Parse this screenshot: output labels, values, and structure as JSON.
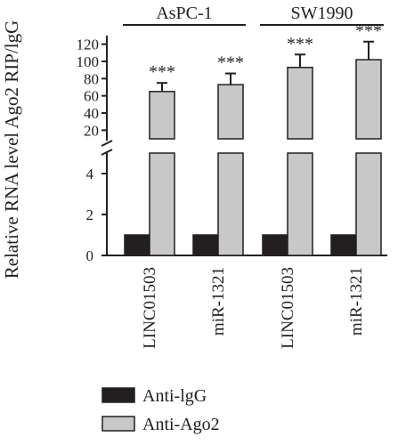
{
  "chart_data": {
    "type": "bar",
    "title": "",
    "xlabel": "",
    "ylabel": "Relative RNA level Ago2 RIP/lgG",
    "axis_break": true,
    "ylim_lower": [
      0,
      5
    ],
    "ylim_upper": [
      10,
      130
    ],
    "yticks_lower": [
      "0",
      "2",
      "4"
    ],
    "yticks_upper": [
      "20",
      "40",
      "60",
      "80",
      "100",
      "120"
    ],
    "groups": [
      {
        "label": "AsPC-1",
        "categories": [
          "LINC01503",
          "miR-1321"
        ]
      },
      {
        "label": "SW1990",
        "categories": [
          "LINC01503",
          "miR-1321"
        ]
      }
    ],
    "categories": [
      "LINC01503",
      "miR-1321",
      "LINC01503",
      "miR-1321"
    ],
    "series": [
      {
        "name": "Anti-lgG",
        "color": "#231f20",
        "values": [
          1,
          1,
          1,
          1
        ]
      },
      {
        "name": "Anti-Ago2",
        "color": "#c8c8c8",
        "values": [
          65,
          73,
          93,
          102
        ],
        "errors": [
          10,
          13,
          15,
          21
        ]
      }
    ],
    "significance": [
      "***",
      "***",
      "***",
      "***"
    ],
    "legend_position": "bottom-left"
  }
}
